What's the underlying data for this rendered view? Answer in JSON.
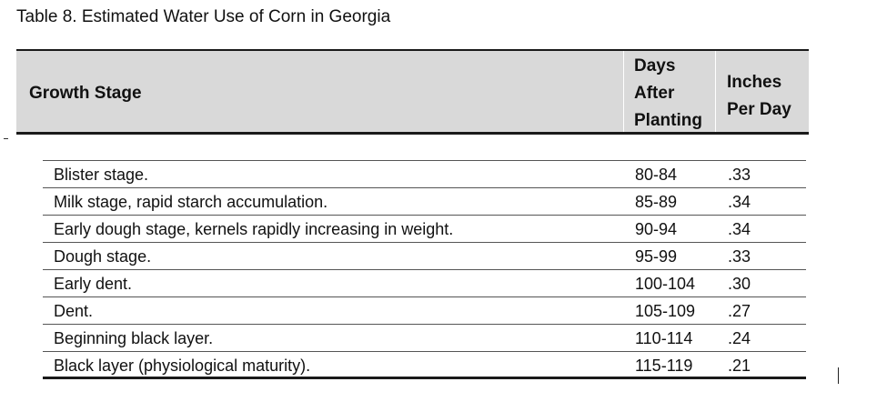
{
  "caption": "Table 8. Estimated Water Use of Corn in Georgia",
  "headers": {
    "stage": "Growth Stage",
    "days": [
      "Days",
      "After",
      "Planting"
    ],
    "inches": [
      "Inches",
      "Per Day"
    ]
  },
  "rows": [
    {
      "stage": "Blister stage.",
      "days": "80-84",
      "inches": ".33"
    },
    {
      "stage": "Milk stage, rapid starch accumulation.",
      "days": "85-89",
      "inches": ".34"
    },
    {
      "stage": "Early dough stage, kernels rapidly increasing in weight.",
      "days": "90-94",
      "inches": ".34"
    },
    {
      "stage": "Dough stage.",
      "days": "95-99",
      "inches": ".33"
    },
    {
      "stage": "Early dent.",
      "days": "100-104",
      "inches": ".30"
    },
    {
      "stage": "Dent.",
      "days": "105-109",
      "inches": ".27"
    },
    {
      "stage": "Beginning black layer.",
      "days": "110-114",
      "inches": ".24"
    },
    {
      "stage": "Black layer (physiological maturity).",
      "days": "115-119",
      "inches": ".21"
    }
  ]
}
